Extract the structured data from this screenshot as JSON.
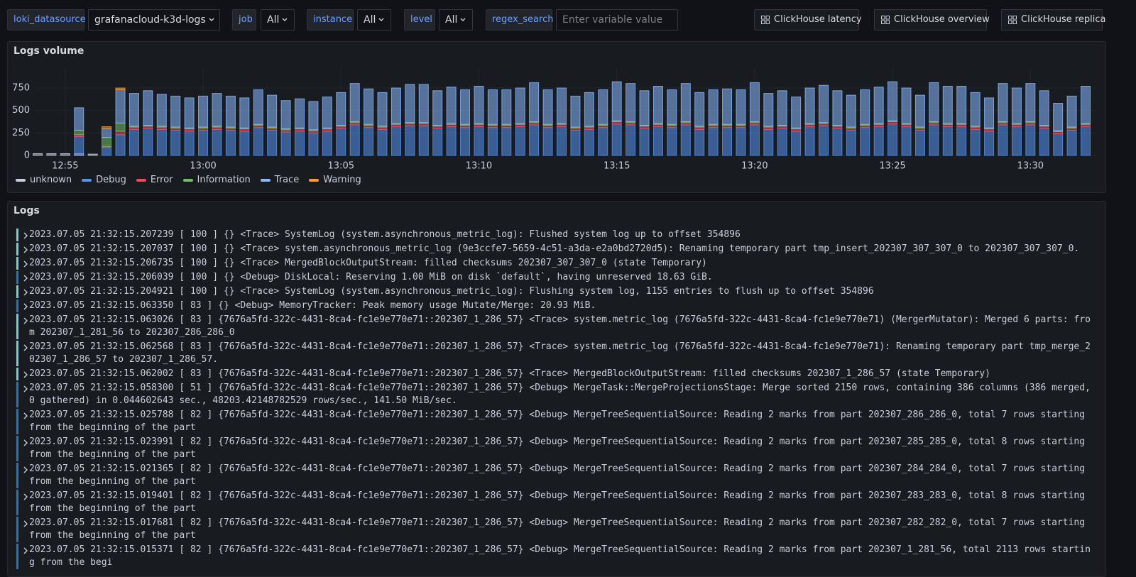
{
  "toolbar": {
    "variables": [
      {
        "label": "loki_datasource",
        "value": "grafanacloud-k3d-logs"
      },
      {
        "label": "job",
        "value": "All"
      },
      {
        "label": "instance",
        "value": "All"
      },
      {
        "label": "level",
        "value": "All"
      },
      {
        "label": "regex_search",
        "placeholder": "Enter variable value"
      }
    ],
    "links": [
      "ClickHouse latency",
      "ClickHouse overview",
      "ClickHouse replica"
    ]
  },
  "chart_data": {
    "type": "bar",
    "stacked": true,
    "title": "Logs volume",
    "categories": [
      null,
      null,
      "12:55",
      null,
      null,
      null,
      null,
      null,
      null,
      null,
      null,
      null,
      "13:00",
      null,
      null,
      null,
      null,
      null,
      null,
      null,
      null,
      null,
      "13:05",
      null,
      null,
      null,
      null,
      null,
      null,
      null,
      null,
      null,
      "13:10",
      null,
      null,
      null,
      null,
      null,
      null,
      null,
      null,
      null,
      "13:15",
      null,
      null,
      null,
      null,
      null,
      null,
      null,
      null,
      null,
      "13:20",
      null,
      null,
      null,
      null,
      null,
      null,
      null,
      null,
      null,
      "13:25",
      null,
      null,
      null,
      null,
      null,
      null,
      null,
      null,
      null,
      "13:30",
      null,
      null,
      null,
      null
    ],
    "series": [
      {
        "name": "unknown",
        "color": "#ccccdc",
        "values": [
          20,
          20,
          20,
          20,
          15,
          0,
          0,
          0,
          0,
          0,
          0,
          0,
          0,
          0,
          0,
          0,
          0,
          0,
          0,
          0,
          0,
          0,
          0,
          0,
          0,
          0,
          0,
          0,
          0,
          0,
          0,
          0,
          0,
          0,
          0,
          0,
          0,
          0,
          0,
          0,
          0,
          0,
          0,
          0,
          0,
          0,
          0,
          0,
          0,
          0,
          0,
          0,
          0,
          0,
          0,
          0,
          0,
          0,
          0,
          0,
          0,
          0,
          0,
          0,
          0,
          0,
          0,
          0,
          0,
          0,
          0,
          0,
          0,
          0,
          0,
          0,
          0
        ]
      },
      {
        "name": "Debug",
        "color": "#5794f2",
        "values": [
          0,
          0,
          0,
          190,
          0,
          90,
          230,
          290,
          300,
          290,
          280,
          270,
          280,
          290,
          280,
          270,
          310,
          280,
          260,
          270,
          250,
          270,
          300,
          340,
          310,
          290,
          320,
          330,
          330,
          300,
          320,
          310,
          320,
          310,
          310,
          320,
          340,
          310,
          320,
          280,
          290,
          310,
          350,
          340,
          300,
          320,
          310,
          340,
          290,
          310,
          310,
          310,
          340,
          290,
          300,
          270,
          320,
          330,
          300,
          280,
          310,
          320,
          350,
          320,
          280,
          340,
          320,
          320,
          290,
          270,
          340,
          320,
          340,
          300,
          240,
          280,
          320
        ]
      },
      {
        "name": "Error",
        "color": "#f2495c",
        "values": [
          0,
          0,
          0,
          20,
          0,
          10,
          40,
          25,
          25,
          25,
          25,
          25,
          25,
          25,
          25,
          25,
          25,
          25,
          25,
          25,
          25,
          25,
          25,
          25,
          25,
          25,
          25,
          25,
          25,
          25,
          25,
          25,
          25,
          25,
          25,
          25,
          25,
          25,
          25,
          25,
          25,
          25,
          25,
          25,
          25,
          25,
          25,
          25,
          25,
          25,
          25,
          25,
          25,
          25,
          25,
          25,
          25,
          25,
          25,
          25,
          25,
          25,
          25,
          25,
          25,
          25,
          25,
          25,
          25,
          25,
          25,
          25,
          25,
          25,
          25,
          25,
          25
        ]
      },
      {
        "name": "Information",
        "color": "#73bf69",
        "values": [
          0,
          0,
          0,
          50,
          0,
          100,
          90,
          10,
          10,
          10,
          10,
          10,
          10,
          10,
          10,
          10,
          10,
          10,
          10,
          10,
          10,
          10,
          10,
          10,
          10,
          10,
          10,
          10,
          10,
          10,
          10,
          10,
          10,
          10,
          10,
          10,
          10,
          10,
          10,
          10,
          10,
          10,
          10,
          10,
          10,
          10,
          10,
          10,
          10,
          10,
          10,
          10,
          10,
          10,
          10,
          10,
          10,
          10,
          10,
          10,
          10,
          10,
          10,
          10,
          10,
          10,
          10,
          10,
          10,
          10,
          10,
          10,
          10,
          10,
          10,
          10,
          10
        ]
      },
      {
        "name": "Trace",
        "color": "#8ab8ff",
        "values": [
          0,
          0,
          0,
          250,
          0,
          100,
          370,
          365,
          385,
          355,
          345,
          335,
          345,
          365,
          345,
          335,
          385,
          355,
          315,
          325,
          315,
          345,
          365,
          425,
          395,
          375,
          395,
          425,
          425,
          385,
          405,
          385,
          415,
          385,
          385,
          395,
          435,
          385,
          395,
          345,
          375,
          385,
          435,
          425,
          385,
          415,
          385,
          425,
          375,
          385,
          395,
          385,
          435,
          365,
          385,
          345,
          395,
          415,
          385,
          355,
          385,
          405,
          435,
          395,
          355,
          435,
          415,
          415,
          375,
          335,
          425,
          395,
          425,
          385,
          305,
          345,
          415
        ]
      },
      {
        "name": "Warning",
        "color": "#ff9830",
        "values": [
          0,
          0,
          0,
          0,
          0,
          20,
          20,
          0,
          0,
          0,
          0,
          0,
          0,
          0,
          0,
          0,
          0,
          0,
          0,
          0,
          0,
          0,
          0,
          0,
          0,
          0,
          0,
          0,
          0,
          0,
          0,
          0,
          0,
          0,
          0,
          0,
          0,
          0,
          0,
          0,
          0,
          0,
          0,
          0,
          0,
          0,
          0,
          0,
          0,
          0,
          0,
          0,
          0,
          0,
          0,
          0,
          0,
          0,
          0,
          0,
          0,
          0,
          0,
          0,
          0,
          0,
          0,
          0,
          0,
          0,
          0,
          0,
          0,
          0,
          0,
          0,
          0
        ]
      }
    ],
    "ylim": [
      0,
      900
    ],
    "yticks": [
      0,
      250,
      500,
      750
    ],
    "grid": true,
    "legend": "bottom-left"
  },
  "logs": {
    "title": "Logs",
    "rows": [
      "2023.07.05 21:32:15.207239 [ 100 ] {} <Trace> SystemLog (system.asynchronous_metric_log): Flushed system log up to offset 354896",
      "2023.07.05 21:32:15.207037 [ 100 ] {} <Trace> system.asynchronous_metric_log (9e3ccfe7-5659-4c51-a3da-e2a0bd2720d5): Renaming temporary part tmp_insert_202307_307_307_0 to 202307_307_307_0.",
      "2023.07.05 21:32:15.206735 [ 100 ] {} <Trace> MergedBlockOutputStream: filled checksums 202307_307_307_0 (state Temporary)",
      "2023.07.05 21:32:15.206039 [ 100 ] {} <Debug> DiskLocal: Reserving 1.00 MiB on disk `default`, having unreserved 18.63 GiB.",
      "2023.07.05 21:32:15.204921 [ 100 ] {} <Trace> SystemLog (system.asynchronous_metric_log): Flushing system log, 1155 entries to flush up to offset 354896",
      "2023.07.05 21:32:15.063350 [ 83 ] {} <Debug> MemoryTracker: Peak memory usage Mutate/Merge: 20.93 MiB.",
      "2023.07.05 21:32:15.063026 [ 83 ] {7676a5fd-322c-4431-8ca4-fc1e9e770e71::202307_1_286_57} <Trace> system.metric_log (7676a5fd-322c-4431-8ca4-fc1e9e770e71) (MergerMutator): Merged 6 parts: from 202307_1_281_56 to 202307_286_286_0",
      "2023.07.05 21:32:15.062568 [ 83 ] {7676a5fd-322c-4431-8ca4-fc1e9e770e71::202307_1_286_57} <Trace> system.metric_log (7676a5fd-322c-4431-8ca4-fc1e9e770e71): Renaming temporary part tmp_merge_202307_1_286_57 to 202307_1_286_57.",
      "2023.07.05 21:32:15.062002 [ 83 ] {7676a5fd-322c-4431-8ca4-fc1e9e770e71::202307_1_286_57} <Trace> MergedBlockOutputStream: filled checksums 202307_1_286_57 (state Temporary)",
      "2023.07.05 21:32:15.058300 [ 51 ] {7676a5fd-322c-4431-8ca4-fc1e9e770e71::202307_1_286_57} <Debug> MergeTask::MergeProjectionsStage: Merge sorted 2150 rows, containing 386 columns (386 merged, 0 gathered) in 0.044602643 sec., 48203.42148782529 rows/sec., 141.50 MiB/sec.",
      "2023.07.05 21:32:15.025788 [ 82 ] {7676a5fd-322c-4431-8ca4-fc1e9e770e71::202307_1_286_57} <Debug> MergeTreeSequentialSource: Reading 2 marks from part 202307_286_286_0, total 7 rows starting from the beginning of the part",
      "2023.07.05 21:32:15.023991 [ 82 ] {7676a5fd-322c-4431-8ca4-fc1e9e770e71::202307_1_286_57} <Debug> MergeTreeSequentialSource: Reading 2 marks from part 202307_285_285_0, total 8 rows starting from the beginning of the part",
      "2023.07.05 21:32:15.021365 [ 82 ] {7676a5fd-322c-4431-8ca4-fc1e9e770e71::202307_1_286_57} <Debug> MergeTreeSequentialSource: Reading 2 marks from part 202307_284_284_0, total 7 rows starting from the beginning of the part",
      "2023.07.05 21:32:15.019401 [ 82 ] {7676a5fd-322c-4431-8ca4-fc1e9e770e71::202307_1_286_57} <Debug> MergeTreeSequentialSource: Reading 2 marks from part 202307_283_283_0, total 8 rows starting from the beginning of the part",
      "2023.07.05 21:32:15.017681 [ 82 ] {7676a5fd-322c-4431-8ca4-fc1e9e770e71::202307_1_286_57} <Debug> MergeTreeSequentialSource: Reading 2 marks from part 202307_282_282_0, total 7 rows starting from the beginning of the part",
      "2023.07.05 21:32:15.015371 [ 82 ] {7676a5fd-322c-4431-8ca4-fc1e9e770e71::202307_1_286_57} <Debug> MergeTreeSequentialSource: Reading 2 marks from part 202307_1_281_56, total 2113 rows starting from the begi"
    ]
  }
}
